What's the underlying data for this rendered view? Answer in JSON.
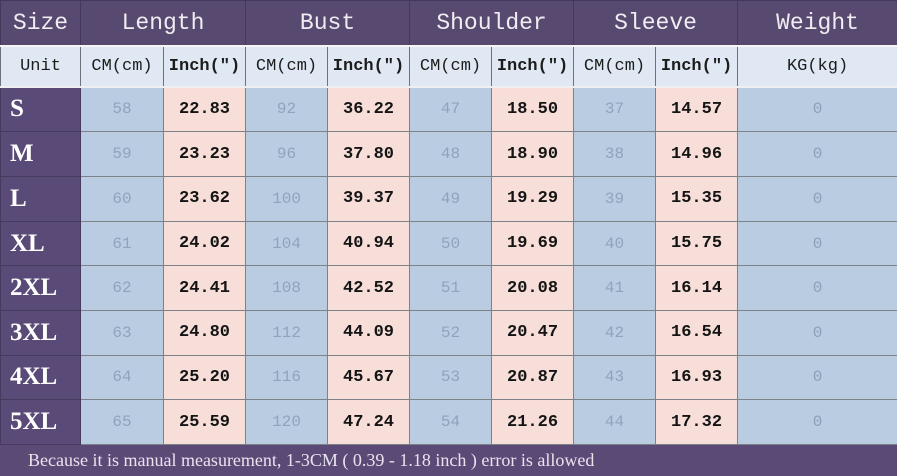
{
  "colors": {
    "header_bg": "#57496f",
    "size_column_bg": "#5a4a77",
    "footer_bg": "#5b4a76",
    "unit_row_bg": "#dfe8f3",
    "cm_cell_bg": "#b9cce2",
    "inch_cell_bg": "#f7ded9",
    "cm_text": "#91a3ba",
    "inch_text": "#141414",
    "header_text": "#f2ecf2"
  },
  "chart_data": {
    "type": "table",
    "header_groups": [
      {
        "label": "Size",
        "span": 1
      },
      {
        "label": "Length",
        "span": 2
      },
      {
        "label": "Bust",
        "span": 2
      },
      {
        "label": "Shoulder",
        "span": 2
      },
      {
        "label": "Sleeve",
        "span": 2
      },
      {
        "label": "Weight",
        "span": 1
      }
    ],
    "unit_cells": [
      "Unit",
      "CM(cm)",
      "Inch(″)",
      "CM(cm)",
      "Inch(″)",
      "CM(cm)",
      "Inch(″)",
      "CM(cm)",
      "Inch(″)",
      "KG(kg)"
    ],
    "value_columns": [
      "length_cm",
      "length_inch",
      "bust_cm",
      "bust_inch",
      "shoulder_cm",
      "shoulder_inch",
      "sleeve_cm",
      "sleeve_inch",
      "weight_kg"
    ],
    "rows": [
      {
        "size": "S",
        "values": [
          "58",
          "22.83",
          "92",
          "36.22",
          "47",
          "18.50",
          "37",
          "14.57",
          "0"
        ]
      },
      {
        "size": "M",
        "values": [
          "59",
          "23.23",
          "96",
          "37.80",
          "48",
          "18.90",
          "38",
          "14.96",
          "0"
        ]
      },
      {
        "size": "L",
        "values": [
          "60",
          "23.62",
          "100",
          "39.37",
          "49",
          "19.29",
          "39",
          "15.35",
          "0"
        ]
      },
      {
        "size": "XL",
        "values": [
          "61",
          "24.02",
          "104",
          "40.94",
          "50",
          "19.69",
          "40",
          "15.75",
          "0"
        ]
      },
      {
        "size": "2XL",
        "values": [
          "62",
          "24.41",
          "108",
          "42.52",
          "51",
          "20.08",
          "41",
          "16.14",
          "0"
        ]
      },
      {
        "size": "3XL",
        "values": [
          "63",
          "24.80",
          "112",
          "44.09",
          "52",
          "20.47",
          "42",
          "16.54",
          "0"
        ]
      },
      {
        "size": "4XL",
        "values": [
          "64",
          "25.20",
          "116",
          "45.67",
          "53",
          "20.87",
          "43",
          "16.93",
          "0"
        ]
      },
      {
        "size": "5XL",
        "values": [
          "65",
          "25.59",
          "120",
          "47.24",
          "54",
          "21.26",
          "44",
          "17.32",
          "0"
        ]
      }
    ],
    "footer_note": "Because it is manual measurement, 1-3CM ( 0.39 - 1.18 inch ) error is allowed"
  }
}
